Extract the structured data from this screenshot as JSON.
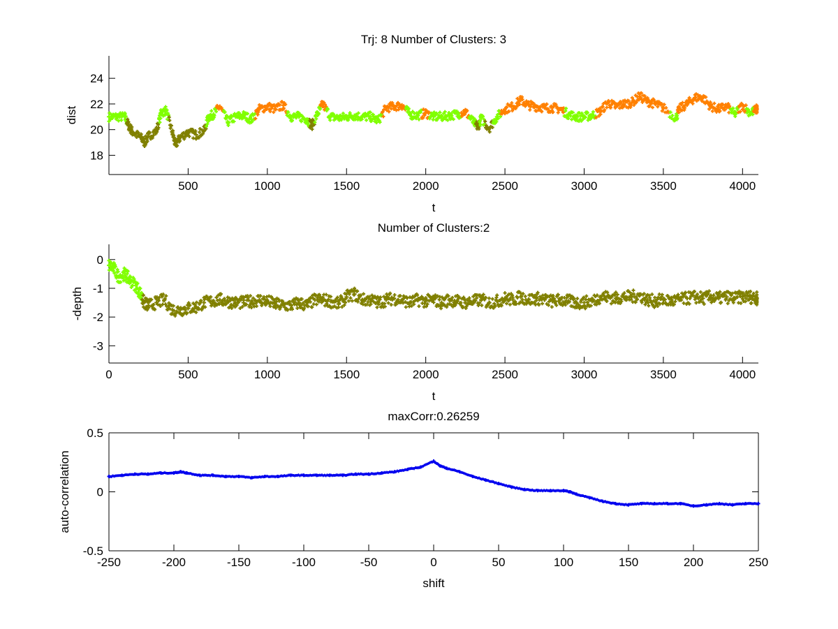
{
  "colors": {
    "cluster_green": "#80ff00",
    "cluster_olive": "#808000",
    "cluster_orange": "#ff8000",
    "corr_blue": "#0000ee",
    "axis": "#000000"
  },
  "chart_data": [
    {
      "type": "scatter",
      "title": "Trj: 8 Number of Clusters: 3",
      "xlabel": "t",
      "ylabel": "dist",
      "xlim": [
        0,
        4100
      ],
      "ylim": [
        16.5,
        25.75
      ],
      "xticks": [
        500,
        1000,
        1500,
        2000,
        2500,
        3000,
        3500,
        4000
      ],
      "yticks": [
        18,
        20,
        22,
        24
      ],
      "box": false,
      "clusters": [
        "green",
        "olive",
        "orange"
      ],
      "points": [
        [
          0,
          21.0,
          "green"
        ],
        [
          50,
          21.0,
          "green"
        ],
        [
          100,
          21.0,
          "green"
        ],
        [
          125,
          20.3,
          "olive"
        ],
        [
          150,
          19.8,
          "olive"
        ],
        [
          200,
          19.4,
          "olive"
        ],
        [
          225,
          19.0,
          "olive"
        ],
        [
          250,
          19.5,
          "olive"
        ],
        [
          300,
          19.9,
          "olive"
        ],
        [
          330,
          21.3,
          "green"
        ],
        [
          360,
          21.5,
          "green"
        ],
        [
          400,
          19.8,
          "olive"
        ],
        [
          420,
          18.8,
          "olive"
        ],
        [
          450,
          19.4,
          "olive"
        ],
        [
          500,
          19.8,
          "olive"
        ],
        [
          550,
          19.6,
          "olive"
        ],
        [
          600,
          19.9,
          "olive"
        ],
        [
          630,
          21.0,
          "green"
        ],
        [
          660,
          21.2,
          "green"
        ],
        [
          700,
          21.8,
          "orange"
        ],
        [
          750,
          20.6,
          "green"
        ],
        [
          800,
          21.0,
          "green"
        ],
        [
          850,
          21.1,
          "green"
        ],
        [
          900,
          20.8,
          "green"
        ],
        [
          950,
          21.6,
          "orange"
        ],
        [
          1000,
          21.8,
          "orange"
        ],
        [
          1050,
          21.6,
          "orange"
        ],
        [
          1100,
          21.9,
          "orange"
        ],
        [
          1150,
          21.0,
          "green"
        ],
        [
          1200,
          21.0,
          "green"
        ],
        [
          1250,
          20.8,
          "green"
        ],
        [
          1280,
          20.3,
          "olive"
        ],
        [
          1320,
          21.3,
          "green"
        ],
        [
          1350,
          22.0,
          "orange"
        ],
        [
          1400,
          21.0,
          "green"
        ],
        [
          1450,
          20.9,
          "green"
        ],
        [
          1500,
          21.0,
          "green"
        ],
        [
          1550,
          21.1,
          "green"
        ],
        [
          1600,
          21.0,
          "green"
        ],
        [
          1650,
          21.0,
          "green"
        ],
        [
          1700,
          20.7,
          "green"
        ],
        [
          1750,
          21.7,
          "orange"
        ],
        [
          1800,
          21.8,
          "orange"
        ],
        [
          1850,
          21.9,
          "orange"
        ],
        [
          1900,
          21.2,
          "green"
        ],
        [
          1950,
          21.1,
          "green"
        ],
        [
          2000,
          21.3,
          "orange"
        ],
        [
          2050,
          21.0,
          "green"
        ],
        [
          2100,
          21.0,
          "green"
        ],
        [
          2150,
          21.1,
          "green"
        ],
        [
          2200,
          21.2,
          "green"
        ],
        [
          2250,
          21.4,
          "orange"
        ],
        [
          2300,
          20.6,
          "green"
        ],
        [
          2330,
          20.2,
          "olive"
        ],
        [
          2350,
          20.9,
          "green"
        ],
        [
          2400,
          20.1,
          "olive"
        ],
        [
          2450,
          21.0,
          "green"
        ],
        [
          2500,
          21.6,
          "orange"
        ],
        [
          2550,
          21.8,
          "orange"
        ],
        [
          2600,
          22.3,
          "orange"
        ],
        [
          2650,
          21.9,
          "orange"
        ],
        [
          2700,
          21.8,
          "orange"
        ],
        [
          2750,
          21.7,
          "orange"
        ],
        [
          2800,
          21.7,
          "orange"
        ],
        [
          2850,
          21.6,
          "orange"
        ],
        [
          2900,
          21.2,
          "green"
        ],
        [
          2950,
          21.0,
          "green"
        ],
        [
          3000,
          21.0,
          "green"
        ],
        [
          3050,
          21.1,
          "green"
        ],
        [
          3100,
          21.4,
          "orange"
        ],
        [
          3150,
          22.1,
          "orange"
        ],
        [
          3200,
          21.8,
          "orange"
        ],
        [
          3250,
          22.0,
          "orange"
        ],
        [
          3300,
          22.1,
          "orange"
        ],
        [
          3350,
          22.6,
          "orange"
        ],
        [
          3400,
          22.2,
          "orange"
        ],
        [
          3450,
          22.0,
          "orange"
        ],
        [
          3500,
          21.7,
          "orange"
        ],
        [
          3580,
          20.9,
          "green"
        ],
        [
          3600,
          21.6,
          "orange"
        ],
        [
          3650,
          22.0,
          "orange"
        ],
        [
          3700,
          22.5,
          "orange"
        ],
        [
          3750,
          22.5,
          "orange"
        ],
        [
          3800,
          21.8,
          "orange"
        ],
        [
          3850,
          21.6,
          "orange"
        ],
        [
          3900,
          21.8,
          "orange"
        ],
        [
          3950,
          21.2,
          "green"
        ],
        [
          4000,
          21.9,
          "orange"
        ],
        [
          4050,
          21.3,
          "green"
        ],
        [
          4090,
          21.6,
          "orange"
        ]
      ]
    },
    {
      "type": "scatter",
      "title": "Number of Clusters:2",
      "xlabel": "t",
      "ylabel": "-depth",
      "xlim": [
        0,
        4100
      ],
      "ylim": [
        -3.6,
        0.53
      ],
      "xticks": [
        0,
        500,
        1000,
        1500,
        2000,
        2500,
        3000,
        3500,
        4000
      ],
      "yticks": [
        0,
        -1,
        -2,
        -3
      ],
      "box": false,
      "clusters": [
        "green",
        "olive"
      ],
      "points": [
        [
          0,
          -0.2,
          "green"
        ],
        [
          30,
          -0.3,
          "green"
        ],
        [
          60,
          -0.6,
          "green"
        ],
        [
          100,
          -0.5,
          "green"
        ],
        [
          130,
          -0.7,
          "green"
        ],
        [
          170,
          -0.9,
          "green"
        ],
        [
          200,
          -1.2,
          "green"
        ],
        [
          220,
          -1.5,
          "olive"
        ],
        [
          250,
          -1.6,
          "olive"
        ],
        [
          300,
          -1.5,
          "olive"
        ],
        [
          350,
          -1.4,
          "olive"
        ],
        [
          400,
          -1.75,
          "olive"
        ],
        [
          450,
          -1.75,
          "olive"
        ],
        [
          500,
          -1.7,
          "olive"
        ],
        [
          550,
          -1.65,
          "olive"
        ],
        [
          600,
          -1.5,
          "olive"
        ],
        [
          650,
          -1.45,
          "olive"
        ],
        [
          700,
          -1.4,
          "olive"
        ],
        [
          750,
          -1.45,
          "olive"
        ],
        [
          800,
          -1.5,
          "olive"
        ],
        [
          850,
          -1.5,
          "olive"
        ],
        [
          900,
          -1.45,
          "olive"
        ],
        [
          950,
          -1.4,
          "olive"
        ],
        [
          1000,
          -1.45,
          "olive"
        ],
        [
          1050,
          -1.55,
          "olive"
        ],
        [
          1100,
          -1.6,
          "olive"
        ],
        [
          1150,
          -1.6,
          "olive"
        ],
        [
          1200,
          -1.5,
          "olive"
        ],
        [
          1250,
          -1.6,
          "olive"
        ],
        [
          1300,
          -1.4,
          "olive"
        ],
        [
          1350,
          -1.4,
          "olive"
        ],
        [
          1400,
          -1.45,
          "olive"
        ],
        [
          1450,
          -1.55,
          "olive"
        ],
        [
          1500,
          -1.3,
          "olive"
        ],
        [
          1550,
          -1.2,
          "olive"
        ],
        [
          1600,
          -1.4,
          "olive"
        ],
        [
          1650,
          -1.4,
          "olive"
        ],
        [
          1700,
          -1.5,
          "olive"
        ],
        [
          1750,
          -1.4,
          "olive"
        ],
        [
          1800,
          -1.35,
          "olive"
        ],
        [
          1850,
          -1.4,
          "olive"
        ],
        [
          1900,
          -1.5,
          "olive"
        ],
        [
          1950,
          -1.4,
          "olive"
        ],
        [
          2000,
          -1.45,
          "olive"
        ],
        [
          2050,
          -1.4,
          "olive"
        ],
        [
          2100,
          -1.5,
          "olive"
        ],
        [
          2150,
          -1.4,
          "olive"
        ],
        [
          2200,
          -1.45,
          "olive"
        ],
        [
          2250,
          -1.5,
          "olive"
        ],
        [
          2300,
          -1.45,
          "olive"
        ],
        [
          2350,
          -1.4,
          "olive"
        ],
        [
          2400,
          -1.5,
          "olive"
        ],
        [
          2450,
          -1.45,
          "olive"
        ],
        [
          2500,
          -1.35,
          "olive"
        ],
        [
          2550,
          -1.4,
          "olive"
        ],
        [
          2600,
          -1.3,
          "olive"
        ],
        [
          2650,
          -1.4,
          "olive"
        ],
        [
          2700,
          -1.35,
          "olive"
        ],
        [
          2750,
          -1.4,
          "olive"
        ],
        [
          2800,
          -1.45,
          "olive"
        ],
        [
          2850,
          -1.4,
          "olive"
        ],
        [
          2900,
          -1.45,
          "olive"
        ],
        [
          2950,
          -1.5,
          "olive"
        ],
        [
          3000,
          -1.5,
          "olive"
        ],
        [
          3050,
          -1.45,
          "olive"
        ],
        [
          3100,
          -1.3,
          "olive"
        ],
        [
          3150,
          -1.3,
          "olive"
        ],
        [
          3200,
          -1.35,
          "olive"
        ],
        [
          3250,
          -1.3,
          "olive"
        ],
        [
          3300,
          -1.3,
          "olive"
        ],
        [
          3350,
          -1.25,
          "olive"
        ],
        [
          3400,
          -1.4,
          "olive"
        ],
        [
          3450,
          -1.45,
          "olive"
        ],
        [
          3500,
          -1.4,
          "olive"
        ],
        [
          3550,
          -1.45,
          "olive"
        ],
        [
          3600,
          -1.4,
          "olive"
        ],
        [
          3650,
          -1.35,
          "olive"
        ],
        [
          3700,
          -1.3,
          "olive"
        ],
        [
          3750,
          -1.35,
          "olive"
        ],
        [
          3800,
          -1.3,
          "olive"
        ],
        [
          3850,
          -1.35,
          "olive"
        ],
        [
          3900,
          -1.3,
          "olive"
        ],
        [
          3950,
          -1.35,
          "olive"
        ],
        [
          4000,
          -1.3,
          "olive"
        ],
        [
          4050,
          -1.3,
          "olive"
        ],
        [
          4090,
          -1.35,
          "olive"
        ]
      ]
    },
    {
      "type": "line",
      "title": "maxCorr:0.26259",
      "xlabel": "shift",
      "ylabel": "auto-correlation",
      "xlim": [
        -250,
        250
      ],
      "ylim": [
        -0.5,
        0.5
      ],
      "xticks": [
        -250,
        -200,
        -150,
        -100,
        -50,
        0,
        50,
        100,
        150,
        200,
        250
      ],
      "yticks": [
        0.5,
        0,
        -0.5
      ],
      "box": true,
      "x": [
        -250,
        -240,
        -230,
        -220,
        -210,
        -200,
        -195,
        -190,
        -180,
        -170,
        -160,
        -150,
        -140,
        -130,
        -120,
        -110,
        -100,
        -90,
        -80,
        -70,
        -60,
        -50,
        -40,
        -30,
        -20,
        -10,
        0,
        5,
        10,
        20,
        30,
        40,
        50,
        60,
        70,
        80,
        90,
        100,
        105,
        110,
        120,
        130,
        140,
        150,
        160,
        170,
        180,
        190,
        200,
        210,
        220,
        230,
        240,
        250
      ],
      "y": [
        0.13,
        0.14,
        0.15,
        0.15,
        0.16,
        0.16,
        0.17,
        0.16,
        0.14,
        0.14,
        0.13,
        0.13,
        0.12,
        0.13,
        0.13,
        0.14,
        0.14,
        0.14,
        0.14,
        0.14,
        0.15,
        0.15,
        0.16,
        0.17,
        0.19,
        0.21,
        0.26,
        0.22,
        0.2,
        0.17,
        0.13,
        0.1,
        0.07,
        0.04,
        0.02,
        0.01,
        0.01,
        0.01,
        0.0,
        -0.02,
        -0.05,
        -0.08,
        -0.1,
        -0.11,
        -0.1,
        -0.1,
        -0.1,
        -0.1,
        -0.12,
        -0.11,
        -0.1,
        -0.11,
        -0.1,
        -0.1
      ]
    }
  ]
}
